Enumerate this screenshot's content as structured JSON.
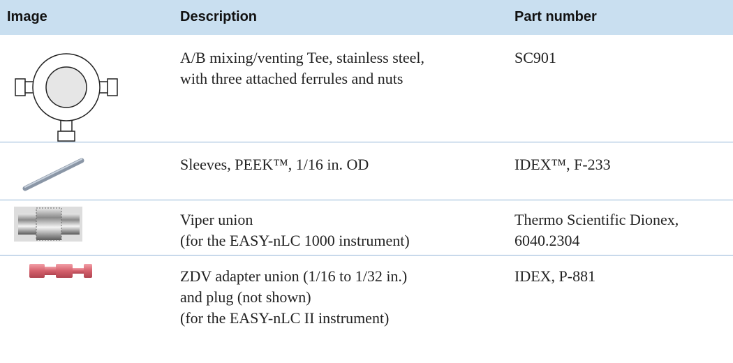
{
  "table": {
    "header": [
      "Image",
      "Description",
      "Part number"
    ],
    "rows": [
      {
        "description": [
          "A/B mixing/venting Tee, stainless steel,",
          "with three attached ferrules and nuts"
        ],
        "part_number": [
          "SC901"
        ]
      },
      {
        "description": [
          "Sleeves, PEEK™, 1/16 in. OD"
        ],
        "part_number": [
          "IDEX™, F-233"
        ]
      },
      {
        "description": [
          "Viper union",
          "(for the EASY-nLC 1000 instrument)"
        ],
        "part_number": [
          "Thermo Scientific Dionex,",
          "6040.2304"
        ]
      },
      {
        "description": [
          "ZDV adapter union (1/16 to 1/32 in.)",
          "and plug (not shown)",
          "(for the EASY-nLC II instrument)"
        ],
        "part_number": [
          "IDEX, P-881"
        ]
      }
    ]
  }
}
